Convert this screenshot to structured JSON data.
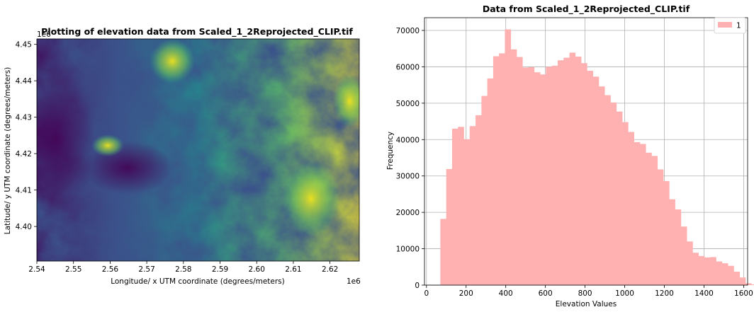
{
  "chart_data": [
    {
      "type": "heatmap",
      "title": "Plotting of elevation data from Scaled_1_2Reprojected_CLIP.tif",
      "xlabel": "Longitude/ x UTM coordinate (degrees/meters)",
      "ylabel": "Latitude/ y UTM coordinate (degrees/meters)",
      "x_offset_label": "1e6",
      "y_offset_label": "1e6",
      "xlim": [
        2.54,
        2.628
      ],
      "ylim": [
        4.3905,
        4.4515
      ],
      "x_ticks": [
        2.54,
        2.55,
        2.56,
        2.57,
        2.58,
        2.59,
        2.6,
        2.61,
        2.62
      ],
      "x_tick_labels": [
        "2.54",
        "2.55",
        "2.56",
        "2.57",
        "2.58",
        "2.59",
        "2.60",
        "2.61",
        "2.62"
      ],
      "y_ticks": [
        4.4,
        4.41,
        4.42,
        4.43,
        4.44,
        4.45
      ],
      "y_tick_labels": [
        "4.40",
        "4.41",
        "4.42",
        "4.43",
        "4.44",
        "4.45"
      ],
      "colormap": "viridis"
    },
    {
      "type": "bar",
      "title": "Data from Scaled_1_2Reprojected_CLIP.tif",
      "xlabel": "Elevation Values",
      "ylabel": "Frequency",
      "xlim": [
        -10,
        1620
      ],
      "ylim": [
        0,
        73500
      ],
      "x_ticks": [
        0,
        200,
        400,
        600,
        800,
        1000,
        1200,
        1400,
        1600
      ],
      "x_tick_labels": [
        "0",
        "200",
        "400",
        "600",
        "800",
        "1000",
        "1200",
        "1400",
        "1600"
      ],
      "y_ticks": [
        0,
        10000,
        20000,
        30000,
        40000,
        50000,
        60000,
        70000
      ],
      "y_tick_labels": [
        "0",
        "10000",
        "20000",
        "30000",
        "40000",
        "50000",
        "60000",
        "70000"
      ],
      "grid": true,
      "legend": {
        "position": "top-right",
        "entries": [
          "1"
        ]
      },
      "color": "#ffb0b0",
      "series": [
        {
          "name": "1",
          "bin_start": 70,
          "bin_width": 29.6,
          "values": [
            18200,
            31900,
            43000,
            43500,
            40100,
            43700,
            46700,
            52000,
            56800,
            62900,
            63700,
            70300,
            64800,
            62700,
            59800,
            59900,
            58500,
            57900,
            60000,
            60300,
            61800,
            62500,
            63900,
            62800,
            61000,
            58900,
            57300,
            54600,
            52200,
            50200,
            47700,
            44800,
            42100,
            39300,
            38800,
            36400,
            35500,
            31800,
            28600,
            23600,
            20800,
            16100,
            12000,
            8900,
            8000,
            7600,
            7700,
            6500,
            6000,
            5300,
            3700,
            2100,
            500,
            200
          ]
        }
      ]
    }
  ]
}
